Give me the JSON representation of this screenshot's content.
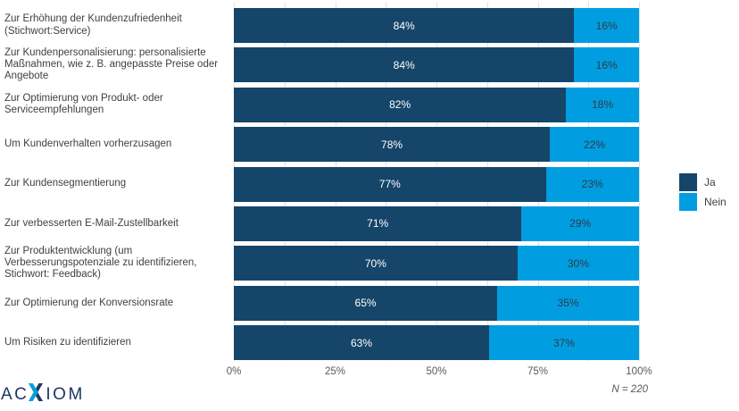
{
  "chart_data": {
    "type": "bar",
    "variant": "horizontal-stacked-100",
    "title": "",
    "categories": [
      "Zur Erhöhung der Kundenzufriedenheit (Stichwort:Service)",
      "Zur Kundenpersonalisierung: personalisierte Maßnahmen, wie z. B. angepasste Preise oder Angebote",
      "Zur Optimierung von Produkt- oder Serviceempfehlungen",
      "Um Kundenverhalten vorherzusagen",
      "Zur Kundensegmentierung",
      "Zur verbesserten E-Mail-Zustellbarkeit",
      "Zur Produktentwicklung (um Verbesserungspotenziale zu identifizieren, Stichwort: Feedback)",
      "Zur Optimierung der Konversionsrate",
      "Um Risiken zu identifizieren"
    ],
    "series": [
      {
        "name": "Ja",
        "color": "#154569",
        "values": [
          84,
          84,
          82,
          78,
          77,
          71,
          70,
          65,
          63
        ]
      },
      {
        "name": "Nein",
        "color": "#009ee0",
        "values": [
          16,
          16,
          18,
          22,
          23,
          29,
          30,
          35,
          37
        ]
      }
    ],
    "value_suffix": "%",
    "xlabel": "",
    "ylabel": "",
    "xlim": [
      0,
      100
    ],
    "x_ticks": [
      "0%",
      "25%",
      "50%",
      "75%",
      "100%"
    ],
    "minor_grid_step_percent": 12.5,
    "legend_position": "right",
    "annotation": "N = 220"
  },
  "footer": {
    "logo_left": "AC",
    "logo_right": "IOM"
  }
}
